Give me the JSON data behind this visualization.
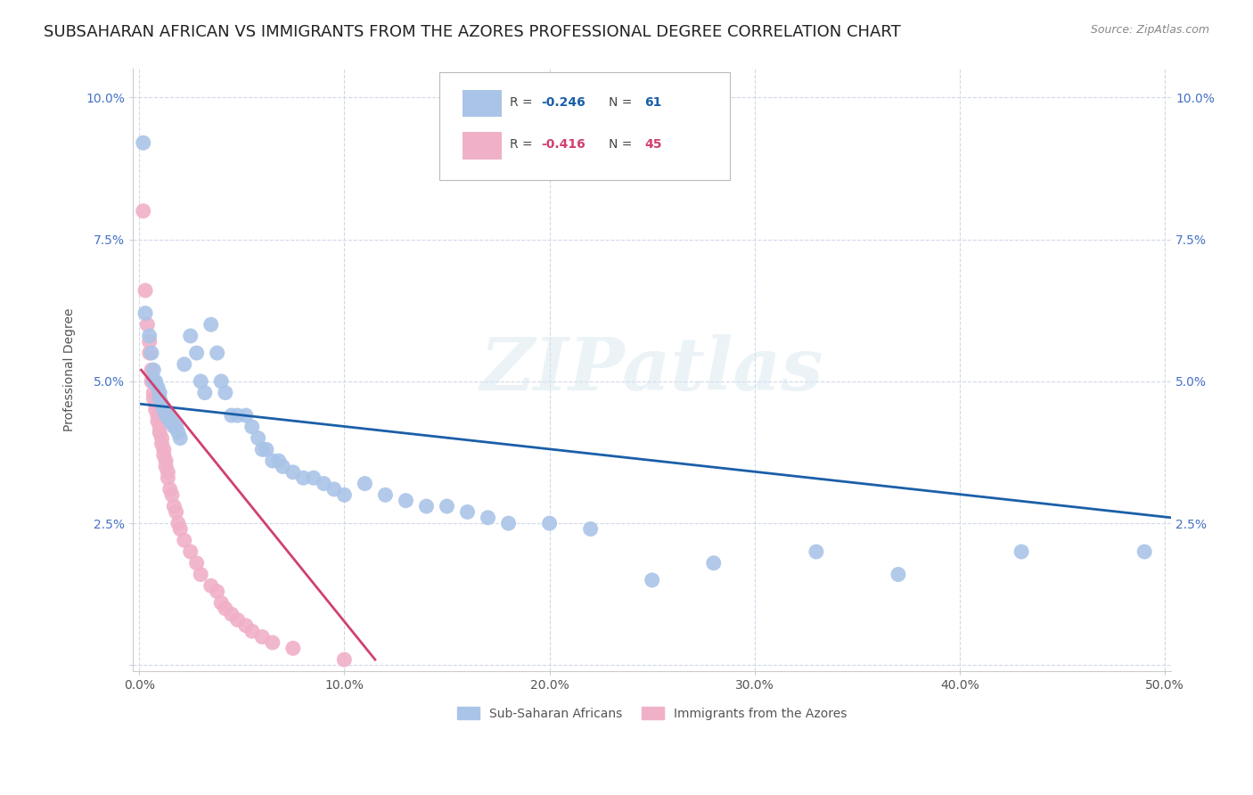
{
  "title": "SUBSAHARAN AFRICAN VS IMMIGRANTS FROM THE AZORES PROFESSIONAL DEGREE CORRELATION CHART",
  "source": "Source: ZipAtlas.com",
  "ylabel": "Professional Degree",
  "xlim": [
    -0.003,
    0.503
  ],
  "ylim": [
    -0.001,
    0.105
  ],
  "xticks": [
    0.0,
    0.1,
    0.2,
    0.3,
    0.4,
    0.5
  ],
  "yticks": [
    0.0,
    0.025,
    0.05,
    0.075,
    0.1
  ],
  "xticklabels": [
    "0.0%",
    "10.0%",
    "20.0%",
    "30.0%",
    "40.0%",
    "50.0%"
  ],
  "yticklabels_left": [
    "",
    "2.5%",
    "5.0%",
    "7.5%",
    "10.0%"
  ],
  "yticklabels_right": [
    "",
    "2.5%",
    "5.0%",
    "7.5%",
    "10.0%"
  ],
  "watermark": "ZIPatlas",
  "legend_blue_label": "Sub-Saharan Africans",
  "legend_pink_label": "Immigrants from the Azores",
  "blue_R": -0.246,
  "blue_N": 61,
  "pink_R": -0.416,
  "pink_N": 45,
  "blue_color": "#aac4e8",
  "pink_color": "#f0b0c8",
  "blue_line_color": "#1a5fa8",
  "pink_line_color": "#d04070",
  "blue_scatter": [
    [
      0.002,
      0.092
    ],
    [
      0.003,
      0.062
    ],
    [
      0.005,
      0.058
    ],
    [
      0.006,
      0.055
    ],
    [
      0.007,
      0.052
    ],
    [
      0.007,
      0.05
    ],
    [
      0.008,
      0.05
    ],
    [
      0.009,
      0.049
    ],
    [
      0.01,
      0.048
    ],
    [
      0.01,
      0.047
    ],
    [
      0.011,
      0.046
    ],
    [
      0.012,
      0.045
    ],
    [
      0.013,
      0.044
    ],
    [
      0.014,
      0.044
    ],
    [
      0.015,
      0.043
    ],
    [
      0.016,
      0.043
    ],
    [
      0.017,
      0.042
    ],
    [
      0.018,
      0.042
    ],
    [
      0.019,
      0.041
    ],
    [
      0.02,
      0.04
    ],
    [
      0.022,
      0.053
    ],
    [
      0.025,
      0.058
    ],
    [
      0.028,
      0.055
    ],
    [
      0.03,
      0.05
    ],
    [
      0.032,
      0.048
    ],
    [
      0.035,
      0.06
    ],
    [
      0.038,
      0.055
    ],
    [
      0.04,
      0.05
    ],
    [
      0.042,
      0.048
    ],
    [
      0.045,
      0.044
    ],
    [
      0.048,
      0.044
    ],
    [
      0.052,
      0.044
    ],
    [
      0.055,
      0.042
    ],
    [
      0.058,
      0.04
    ],
    [
      0.06,
      0.038
    ],
    [
      0.062,
      0.038
    ],
    [
      0.065,
      0.036
    ],
    [
      0.068,
      0.036
    ],
    [
      0.07,
      0.035
    ],
    [
      0.075,
      0.034
    ],
    [
      0.08,
      0.033
    ],
    [
      0.085,
      0.033
    ],
    [
      0.09,
      0.032
    ],
    [
      0.095,
      0.031
    ],
    [
      0.1,
      0.03
    ],
    [
      0.11,
      0.032
    ],
    [
      0.12,
      0.03
    ],
    [
      0.13,
      0.029
    ],
    [
      0.14,
      0.028
    ],
    [
      0.15,
      0.028
    ],
    [
      0.16,
      0.027
    ],
    [
      0.17,
      0.026
    ],
    [
      0.18,
      0.025
    ],
    [
      0.2,
      0.025
    ],
    [
      0.22,
      0.024
    ],
    [
      0.25,
      0.015
    ],
    [
      0.28,
      0.018
    ],
    [
      0.33,
      0.02
    ],
    [
      0.37,
      0.016
    ],
    [
      0.43,
      0.02
    ],
    [
      0.49,
      0.02
    ]
  ],
  "pink_scatter": [
    [
      0.002,
      0.08
    ],
    [
      0.003,
      0.066
    ],
    [
      0.004,
      0.06
    ],
    [
      0.005,
      0.057
    ],
    [
      0.005,
      0.055
    ],
    [
      0.006,
      0.052
    ],
    [
      0.006,
      0.05
    ],
    [
      0.007,
      0.048
    ],
    [
      0.007,
      0.047
    ],
    [
      0.008,
      0.046
    ],
    [
      0.008,
      0.045
    ],
    [
      0.009,
      0.044
    ],
    [
      0.009,
      0.043
    ],
    [
      0.01,
      0.042
    ],
    [
      0.01,
      0.041
    ],
    [
      0.011,
      0.04
    ],
    [
      0.011,
      0.039
    ],
    [
      0.012,
      0.038
    ],
    [
      0.012,
      0.037
    ],
    [
      0.013,
      0.036
    ],
    [
      0.013,
      0.035
    ],
    [
      0.014,
      0.034
    ],
    [
      0.014,
      0.033
    ],
    [
      0.015,
      0.031
    ],
    [
      0.016,
      0.03
    ],
    [
      0.017,
      0.028
    ],
    [
      0.018,
      0.027
    ],
    [
      0.019,
      0.025
    ],
    [
      0.02,
      0.024
    ],
    [
      0.022,
      0.022
    ],
    [
      0.025,
      0.02
    ],
    [
      0.028,
      0.018
    ],
    [
      0.03,
      0.016
    ],
    [
      0.035,
      0.014
    ],
    [
      0.038,
      0.013
    ],
    [
      0.04,
      0.011
    ],
    [
      0.042,
      0.01
    ],
    [
      0.045,
      0.009
    ],
    [
      0.048,
      0.008
    ],
    [
      0.052,
      0.007
    ],
    [
      0.055,
      0.006
    ],
    [
      0.06,
      0.005
    ],
    [
      0.065,
      0.004
    ],
    [
      0.075,
      0.003
    ],
    [
      0.1,
      0.001
    ]
  ],
  "blue_line_x": [
    0.001,
    0.503
  ],
  "blue_line_y": [
    0.046,
    0.026
  ],
  "pink_line_x": [
    0.001,
    0.115
  ],
  "pink_line_y": [
    0.052,
    0.001
  ],
  "background_color": "#ffffff",
  "grid_color": "#d0d8e8",
  "title_fontsize": 13,
  "axis_fontsize": 10,
  "tick_fontsize": 10
}
